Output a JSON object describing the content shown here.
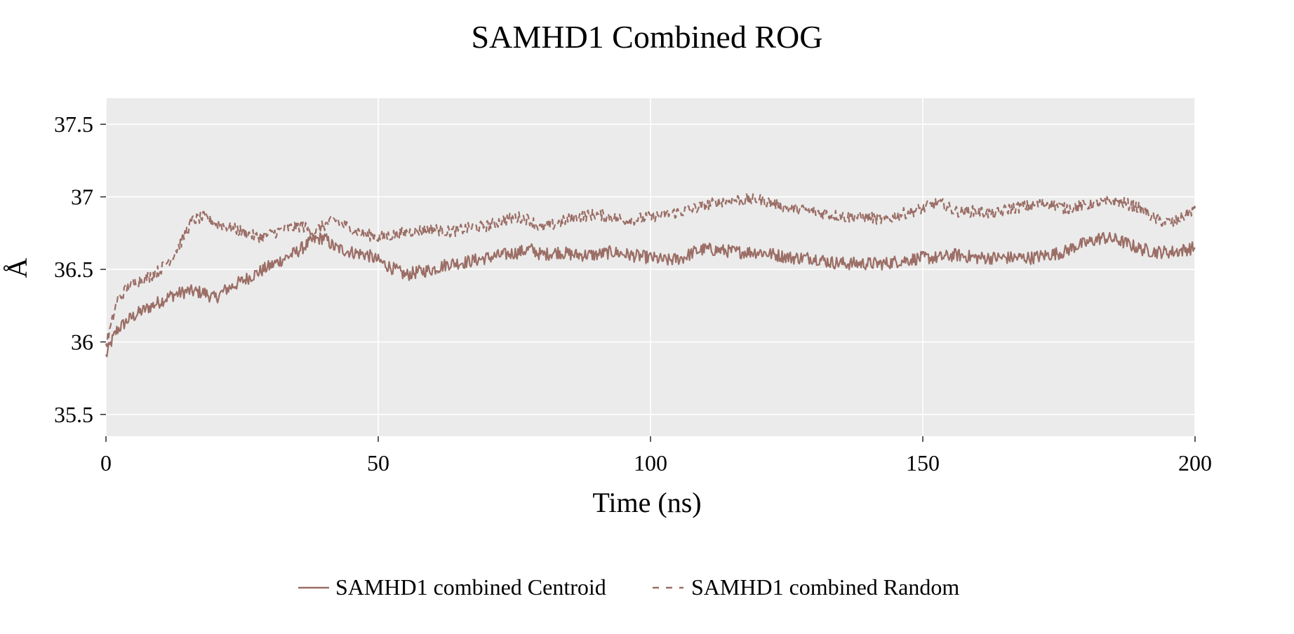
{
  "chart_data": {
    "type": "line",
    "title": "SAMHD1 Combined ROG",
    "xlabel": "Time (ns)",
    "ylabel": "Å",
    "xlim": [
      0,
      200
    ],
    "ylim": [
      35.35,
      37.68
    ],
    "x_ticks": [
      0,
      50,
      100,
      150,
      200
    ],
    "x_tick_labels": [
      "0",
      "50",
      "100",
      "150",
      "200"
    ],
    "y_ticks": [
      35.5,
      36,
      36.5,
      37,
      37.5
    ],
    "y_tick_labels": [
      "35.5",
      "36",
      "36.5",
      "37",
      "37.5"
    ],
    "grid": true,
    "legend_position": "bottom",
    "line_color": "#9b6e66",
    "panel_background": "#ebebeb",
    "series": [
      {
        "name": "SAMHD1 combined Centroid",
        "linestyle": "solid",
        "x": [
          0,
          1,
          2,
          4,
          6,
          8,
          10,
          12,
          15,
          18,
          20,
          22,
          25,
          28,
          30,
          33,
          35,
          38,
          40,
          42,
          45,
          48,
          50,
          52,
          55,
          57,
          60,
          63,
          66,
          70,
          73,
          76,
          78,
          80,
          83,
          86,
          90,
          93,
          96,
          100,
          103,
          106,
          108,
          110,
          113,
          116,
          120,
          123,
          126,
          130,
          133,
          136,
          140,
          143,
          146,
          150,
          153,
          156,
          160,
          163,
          166,
          170,
          173,
          176,
          178,
          180,
          183,
          186,
          190,
          193,
          196,
          200
        ],
        "y": [
          35.9,
          36.0,
          36.08,
          36.15,
          36.2,
          36.24,
          36.28,
          36.32,
          36.35,
          36.34,
          36.3,
          36.36,
          36.42,
          36.48,
          36.52,
          36.58,
          36.62,
          36.7,
          36.72,
          36.65,
          36.62,
          36.6,
          36.56,
          36.52,
          36.46,
          36.48,
          36.5,
          36.54,
          36.55,
          36.58,
          36.6,
          36.62,
          36.64,
          36.6,
          36.62,
          36.6,
          36.6,
          36.62,
          36.6,
          36.58,
          36.56,
          36.58,
          36.62,
          36.64,
          36.63,
          36.62,
          36.62,
          36.6,
          36.58,
          36.58,
          36.55,
          36.54,
          36.54,
          36.54,
          36.56,
          36.58,
          36.58,
          36.6,
          36.58,
          36.58,
          36.58,
          36.58,
          36.6,
          36.62,
          36.66,
          36.68,
          36.72,
          36.7,
          36.64,
          36.62,
          36.62,
          36.65
        ]
      },
      {
        "name": "SAMHD1 combined Random",
        "linestyle": "dashed",
        "x": [
          0,
          1,
          2,
          4,
          6,
          8,
          10,
          12,
          14,
          15,
          16,
          18,
          20,
          22,
          25,
          28,
          30,
          33,
          36,
          38,
          40,
          42,
          45,
          48,
          50,
          53,
          56,
          60,
          63,
          66,
          70,
          73,
          76,
          78,
          80,
          83,
          86,
          90,
          93,
          96,
          100,
          103,
          106,
          110,
          113,
          116,
          120,
          123,
          126,
          130,
          133,
          136,
          140,
          143,
          146,
          150,
          153,
          156,
          160,
          163,
          166,
          170,
          173,
          176,
          180,
          183,
          186,
          190,
          193,
          196,
          200
        ],
        "y": [
          35.98,
          36.12,
          36.28,
          36.38,
          36.42,
          36.45,
          36.5,
          36.58,
          36.7,
          36.78,
          36.84,
          36.86,
          36.82,
          36.8,
          36.76,
          36.72,
          36.74,
          36.78,
          36.8,
          36.76,
          36.8,
          36.84,
          36.78,
          36.74,
          36.72,
          36.74,
          36.76,
          36.78,
          36.76,
          36.78,
          36.8,
          36.84,
          36.86,
          36.84,
          36.78,
          36.82,
          36.86,
          36.88,
          36.86,
          36.84,
          36.86,
          36.88,
          36.9,
          36.94,
          36.97,
          36.98,
          36.98,
          36.95,
          36.92,
          36.9,
          36.88,
          36.86,
          36.86,
          36.84,
          36.88,
          36.92,
          36.96,
          36.9,
          36.9,
          36.88,
          36.92,
          36.94,
          36.96,
          36.92,
          36.94,
          36.96,
          36.97,
          36.92,
          36.84,
          36.82,
          36.92
        ]
      }
    ]
  }
}
